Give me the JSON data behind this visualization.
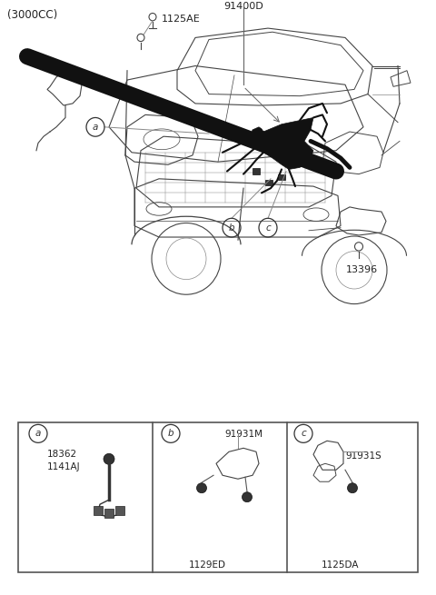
{
  "bg_color": "#ffffff",
  "fig_width": 4.8,
  "fig_height": 6.55,
  "dpi": 100,
  "top_label": "(3000CC)",
  "label_91400D": "91400D",
  "label_1125AE": "1125AE",
  "label_13396": "13396",
  "label_91931M": "91931M",
  "label_1129ED": "1129ED",
  "label_91931S": "91931S",
  "label_1125DA": "1125DA",
  "label_18362": "18362",
  "label_1141AJ": "1141AJ",
  "line_color": "#444444",
  "text_color": "#222222",
  "edge_color": "#555555"
}
